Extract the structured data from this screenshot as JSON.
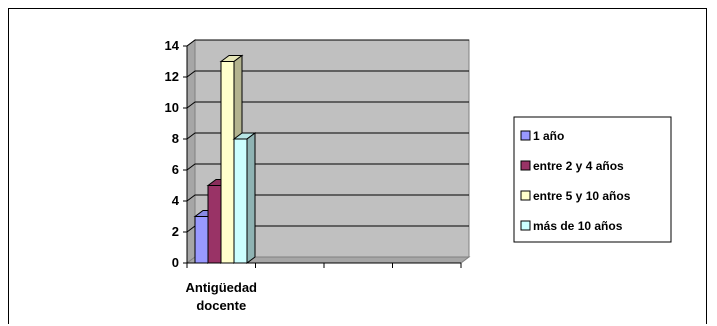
{
  "chart_data": {
    "type": "bar",
    "categories": [
      "Antigüedad docente"
    ],
    "category_lines": [
      "Antigüedad",
      "docente"
    ],
    "series": [
      {
        "name": "1 año",
        "values": [
          3
        ],
        "color": "#9999ff"
      },
      {
        "name": "entre 2 y 4 años",
        "values": [
          5
        ],
        "color": "#993366"
      },
      {
        "name": "entre 5 y 10 años",
        "values": [
          13
        ],
        "color": "#ffffcc"
      },
      {
        "name": "más de 10 años",
        "values": [
          8
        ],
        "color": "#ccffff"
      }
    ],
    "yticks": [
      "0",
      "2",
      "4",
      "6",
      "8",
      "10",
      "12",
      "14"
    ],
    "ylim": [
      0,
      14
    ],
    "grid": true,
    "legend_position": "right",
    "plot_background": "#c0c0c0",
    "three_d": true
  }
}
